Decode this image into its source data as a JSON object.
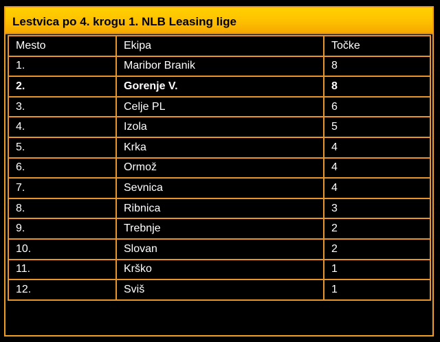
{
  "title": "Lestvica po 4. krogu 1. NLB Leasing lige",
  "columns": [
    "Mesto",
    "Ekipa",
    "Točke"
  ],
  "rows": [
    {
      "place": "1.",
      "team": "Maribor Branik",
      "points": "8",
      "highlight": false
    },
    {
      "place": "2.",
      "team": "Gorenje V.",
      "points": "8",
      "highlight": true
    },
    {
      "place": "3.",
      "team": "Celje PL",
      "points": "6",
      "highlight": false
    },
    {
      "place": "4.",
      "team": "Izola",
      "points": "5",
      "highlight": false
    },
    {
      "place": "5.",
      "team": "Krka",
      "points": "4",
      "highlight": false
    },
    {
      "place": "6.",
      "team": "Ormož",
      "points": "4",
      "highlight": false
    },
    {
      "place": "7.",
      "team": "Sevnica",
      "points": "4",
      "highlight": false
    },
    {
      "place": "8.",
      "team": "Ribnica",
      "points": "3",
      "highlight": false
    },
    {
      "place": "9.",
      "team": "Trebnje",
      "points": "2",
      "highlight": false
    },
    {
      "place": "10.",
      "team": "Slovan",
      "points": "2",
      "highlight": false
    },
    {
      "place": "11.",
      "team": "Krško",
      "points": "1",
      "highlight": false
    },
    {
      "place": "12.",
      "team": "Sviš",
      "points": "1",
      "highlight": false
    }
  ],
  "colors": {
    "background": "#000000",
    "title_bar": "#ffc400",
    "border": "#e8962a",
    "text": "#ffffff"
  }
}
